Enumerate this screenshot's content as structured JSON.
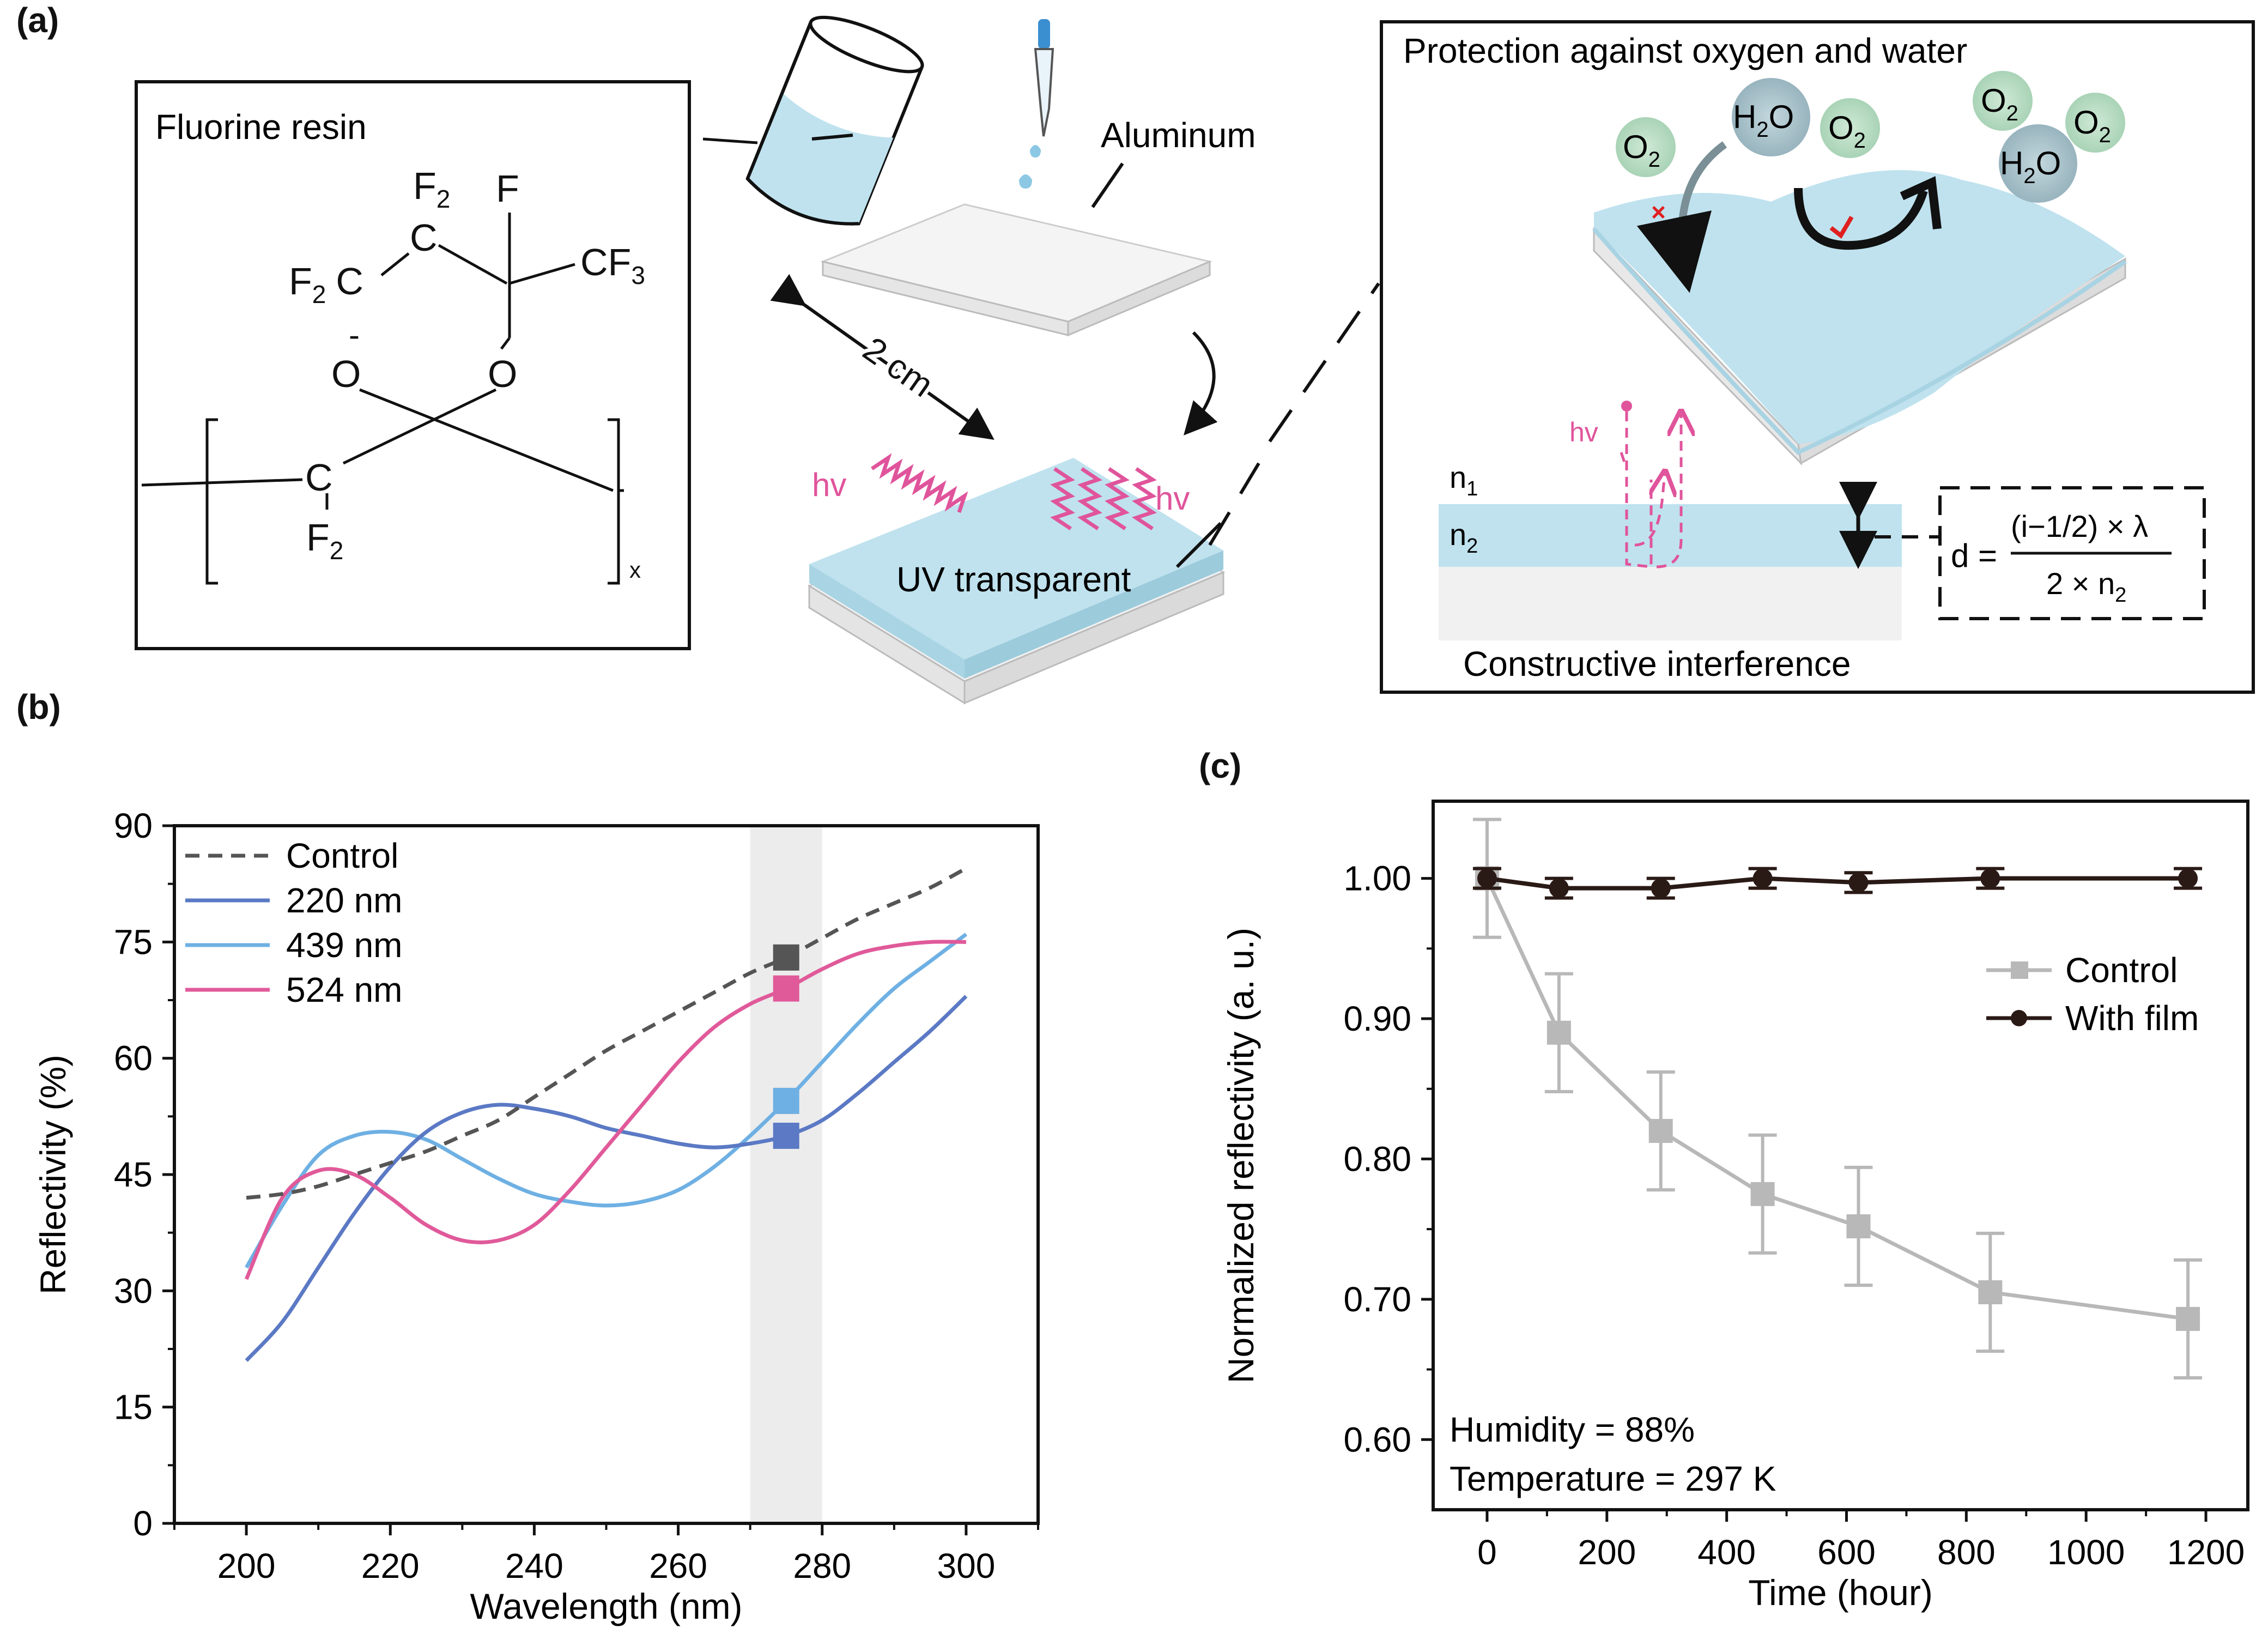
{
  "panel_labels": {
    "a": "(a)",
    "b": "(b)",
    "c": "(c)"
  },
  "panel_a": {
    "resin_box_title": "Fluorine resin",
    "structure": {
      "f2_top": "F",
      "f2_top_sub": "2",
      "c_top": "C",
      "f_right": "F",
      "cf3": "CF",
      "cf3_sub": "3",
      "f2c_left": "F",
      "f2c_left_sub": "2",
      "f2c_left_c": "C",
      "dash": "-",
      "o_left": "O",
      "o_right": "O",
      "c_chain": "C",
      "f2_bottom": "F",
      "f2_bottom_sub": "2",
      "x_sub": "x"
    },
    "aluminum_label": "Aluminum",
    "size_label": "2 cm",
    "hv_left": "hv",
    "hv_right": "hv",
    "uv_label": "UV transparent",
    "protection_title": "Protection against oxygen and water",
    "molecules": [
      {
        "main": "O",
        "sub": "2"
      },
      {
        "main": "H",
        "sub": "2",
        "tail": "O"
      },
      {
        "main": "O",
        "sub": "2"
      },
      {
        "main": "O",
        "sub": "2"
      },
      {
        "main": "O",
        "sub": "2"
      },
      {
        "main": "H",
        "sub": "2",
        "tail": "O"
      }
    ],
    "hv_film": "hv",
    "n1": {
      "main": "n",
      "sub": "1"
    },
    "n2": {
      "main": "n",
      "sub": "2"
    },
    "interference_label": "Constructive interference",
    "equation": {
      "lhs": "d =",
      "numerator": "(i−1/2) × λ",
      "denominator": "2 × n",
      "denominator_sub": "2"
    },
    "colors": {
      "film": "#bfe2ee",
      "molecule_o2": "#b7dcc4",
      "molecule_h2o": "#a9c3cc",
      "hv": "#e0549b",
      "cross": "#e02020",
      "check": "#e02020"
    }
  },
  "chart_data": [
    {
      "type": "line",
      "panel": "b",
      "xlabel": "Wavelength (nm)",
      "ylabel": "Reflectivity (%)",
      "xlim": [
        190,
        310
      ],
      "ylim": [
        0,
        90
      ],
      "xticks": [
        200,
        220,
        240,
        260,
        280,
        300
      ],
      "yticks": [
        0,
        15,
        30,
        45,
        60,
        75,
        90
      ],
      "highlight_band": [
        270,
        280
      ],
      "legend_position": "top-left",
      "series": [
        {
          "name": "Control",
          "color": "#555555",
          "dash": true,
          "x": [
            200,
            205,
            210,
            215,
            220,
            225,
            230,
            235,
            240,
            245,
            250,
            255,
            260,
            265,
            270,
            275,
            280,
            285,
            290,
            295,
            300
          ],
          "y": [
            42,
            42.5,
            43.5,
            45,
            46.5,
            48,
            50,
            52,
            55,
            58,
            61,
            63.5,
            66,
            68.5,
            71,
            73,
            75.5,
            78,
            80,
            82,
            84.5
          ],
          "marker": {
            "x": 275,
            "y": 73
          }
        },
        {
          "name": "220 nm",
          "color": "#5b79c4",
          "dash": false,
          "x": [
            200,
            205,
            210,
            215,
            220,
            225,
            230,
            235,
            240,
            245,
            250,
            255,
            260,
            265,
            270,
            275,
            280,
            285,
            290,
            295,
            300
          ],
          "y": [
            21,
            26,
            33,
            40,
            46,
            50.5,
            53,
            54,
            53.5,
            52.5,
            51,
            50,
            49,
            48.5,
            49,
            50,
            52,
            55.5,
            59.5,
            63.5,
            68
          ],
          "marker": {
            "x": 275,
            "y": 50
          }
        },
        {
          "name": "439 nm",
          "color": "#6eb0e3",
          "dash": false,
          "x": [
            200,
            205,
            210,
            215,
            220,
            225,
            230,
            235,
            240,
            245,
            250,
            255,
            260,
            265,
            270,
            275,
            280,
            285,
            290,
            295,
            300
          ],
          "y": [
            33,
            41,
            47.5,
            50,
            50.5,
            49.5,
            47,
            44.5,
            42.5,
            41.5,
            41,
            41.5,
            43,
            46,
            50,
            54.5,
            59.5,
            64.5,
            69,
            72.5,
            76
          ],
          "marker": {
            "x": 275,
            "y": 54.5
          }
        },
        {
          "name": "524 nm",
          "color": "#e05a9a",
          "dash": false,
          "x": [
            200,
            205,
            210,
            215,
            220,
            225,
            230,
            235,
            240,
            245,
            250,
            255,
            260,
            265,
            270,
            275,
            280,
            285,
            290,
            295,
            300
          ],
          "y": [
            31.5,
            42,
            45.5,
            45,
            42,
            38.5,
            36.5,
            36.5,
            38.5,
            43,
            48.5,
            54,
            59.5,
            64,
            67,
            69,
            71.5,
            73.5,
            74.5,
            75,
            75
          ],
          "marker": {
            "x": 275,
            "y": 69
          }
        }
      ]
    },
    {
      "type": "line",
      "panel": "c",
      "xlabel": "Time (hour)",
      "ylabel": "Normalized reflectivity (a. u.)",
      "xlim": [
        -90,
        1270
      ],
      "ylim": [
        0.55,
        1.055
      ],
      "xticks": [
        0,
        200,
        400,
        600,
        800,
        1000,
        1200
      ],
      "yticks": [
        0.6,
        0.7,
        0.8,
        0.9,
        1.0
      ],
      "ytick_labels": [
        "0.60",
        "0.70",
        "0.80",
        "0.90",
        "1.00"
      ],
      "legend_position": "right",
      "series": [
        {
          "name": "Control",
          "color": "#b8b8b8",
          "marker": "square",
          "x": [
            0,
            120,
            290,
            460,
            620,
            840,
            1170
          ],
          "y": [
            1.0,
            0.89,
            0.82,
            0.775,
            0.752,
            0.705,
            0.686
          ],
          "err": [
            0.042,
            0.042,
            0.042,
            0.042,
            0.042,
            0.042,
            0.042
          ]
        },
        {
          "name": "With film",
          "color": "#2a1a16",
          "marker": "circle",
          "x": [
            0,
            120,
            290,
            460,
            620,
            840,
            1170
          ],
          "y": [
            1.0,
            0.993,
            0.993,
            1.0,
            0.997,
            1.0,
            1.0
          ],
          "err": [
            0.007,
            0.007,
            0.007,
            0.007,
            0.007,
            0.007,
            0.007
          ]
        }
      ],
      "annotations": [
        "Humidity = 88%",
        "Temperature = 297 K"
      ]
    }
  ]
}
